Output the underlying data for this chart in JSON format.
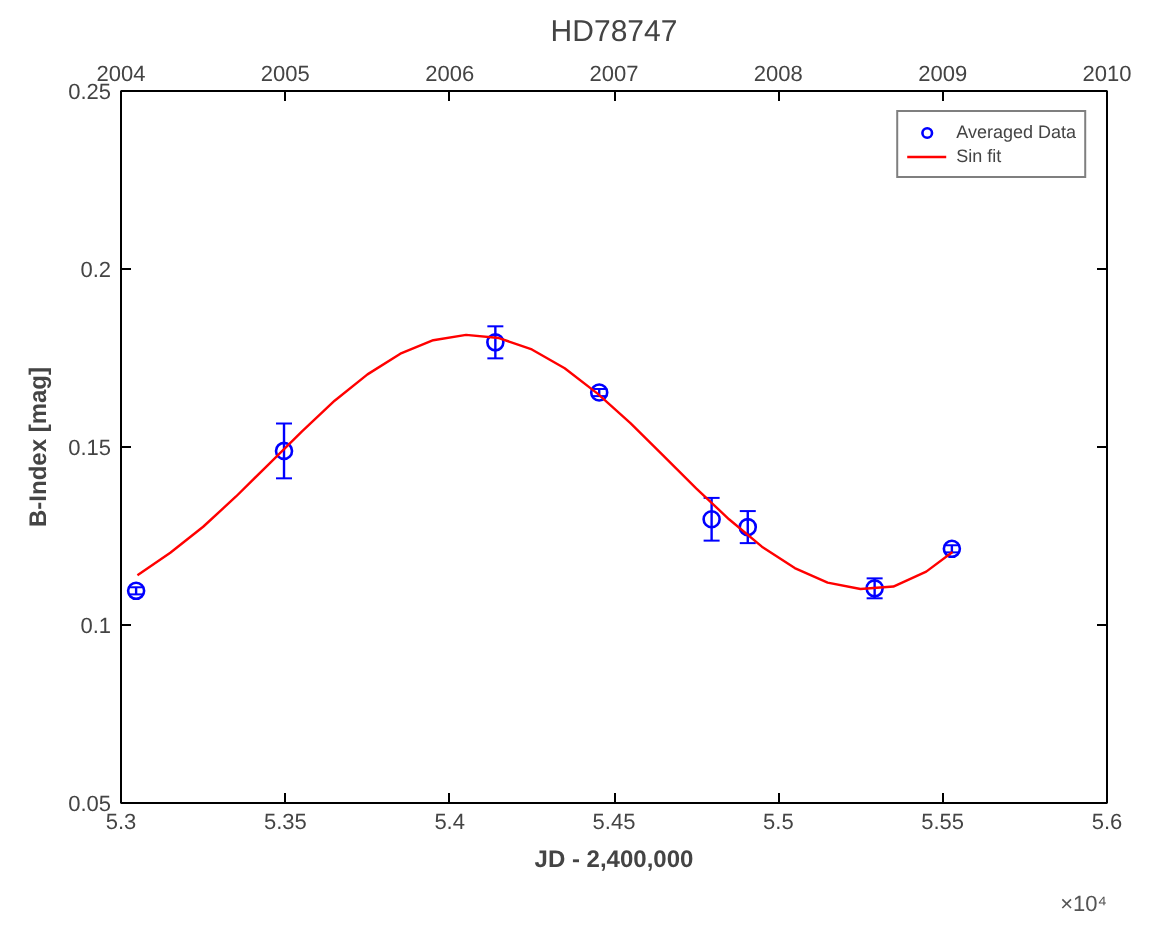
{
  "chart_data": {
    "type": "scatter",
    "title": "HD78747",
    "xlabel": "JD - 2,400,000",
    "ylabel": "B-Index [mag]",
    "xlim": [
      5.3,
      5.6
    ],
    "xticks": [
      5.3,
      5.35,
      5.4,
      5.45,
      5.5,
      5.55,
      5.6
    ],
    "x2lim": [
      2004,
      2010
    ],
    "x2ticks": [
      2004,
      2005,
      2006,
      2007,
      2008,
      2009,
      2010
    ],
    "ylim": [
      0.05,
      0.25
    ],
    "yticks": [
      0.05,
      0.1,
      0.15,
      0.2,
      0.25
    ],
    "grid": false,
    "legend": "top right",
    "annotations": [
      "×10⁴"
    ],
    "series": [
      {
        "name": "Averaged Data",
        "marker": "circle",
        "color": "#0000ff",
        "x": [
          5.3046,
          5.3496,
          5.4139,
          5.4455,
          5.4797,
          5.4907,
          5.5293,
          5.5528
        ],
        "values": [
          0.1096,
          0.1489,
          0.1794,
          0.1653,
          0.1297,
          0.1275,
          0.1103,
          0.1214
        ],
        "errors": [
          0.001,
          0.0077,
          0.0045,
          0.001,
          0.006,
          0.0045,
          0.0028,
          0.001
        ]
      },
      {
        "name": "Sin fit",
        "type": "line",
        "marker": "none",
        "color": "#ff0000",
        "line_style": "solid",
        "x": [
          5.305,
          5.315,
          5.325,
          5.335,
          5.345,
          5.355,
          5.365,
          5.375,
          5.385,
          5.395,
          5.405,
          5.415,
          5.425,
          5.435,
          5.445,
          5.455,
          5.465,
          5.475,
          5.485,
          5.495,
          5.505,
          5.515,
          5.525,
          5.535,
          5.545,
          5.553
        ],
        "values": [
          0.114,
          0.1203,
          0.1276,
          0.1361,
          0.1452,
          0.1543,
          0.163,
          0.1704,
          0.1762,
          0.18,
          0.1815,
          0.1806,
          0.1774,
          0.1721,
          0.165,
          0.1567,
          0.1476,
          0.1384,
          0.1297,
          0.122,
          0.116,
          0.1119,
          0.1101,
          0.1108,
          0.115,
          0.1205
        ]
      }
    ]
  }
}
